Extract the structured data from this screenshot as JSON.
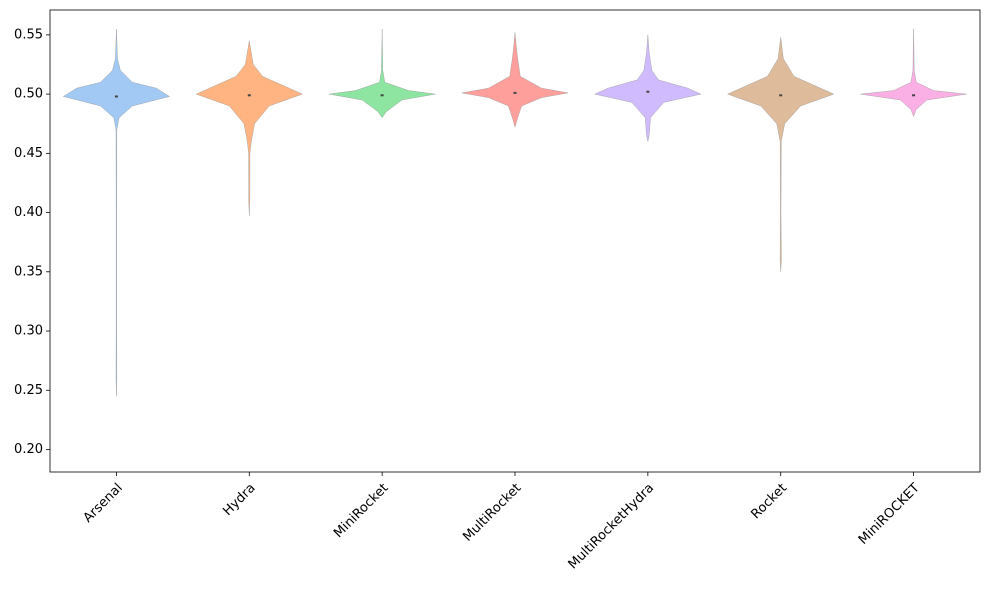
{
  "chart_data": {
    "type": "violin",
    "categories": [
      "Arsenal",
      "Hydra",
      "MiniRocket",
      "MultiRocket",
      "MultiRocketHydra",
      "Rocket",
      "MiniROCKET"
    ],
    "ylim": [
      0.181,
      0.571
    ],
    "yticks": [
      {
        "value": 0.2,
        "label": "0.20"
      },
      {
        "value": 0.25,
        "label": "0.25"
      },
      {
        "value": 0.3,
        "label": "0.30"
      },
      {
        "value": 0.35,
        "label": "0.35"
      },
      {
        "value": 0.4,
        "label": "0.40"
      },
      {
        "value": 0.45,
        "label": "0.45"
      },
      {
        "value": 0.5,
        "label": "0.50"
      },
      {
        "value": 0.55,
        "label": "0.55"
      }
    ],
    "violins": [
      {
        "color": "#a1c9f4",
        "median": 0.498,
        "y": [
          0.245,
          0.26,
          0.3,
          0.4,
          0.47,
          0.48,
          0.49,
          0.498,
          0.505,
          0.51,
          0.52,
          0.53,
          0.555
        ],
        "width": [
          0,
          0.003,
          0.002,
          0.002,
          0.003,
          0.02,
          0.12,
          0.4,
          0.3,
          0.12,
          0.03,
          0.008,
          0
        ]
      },
      {
        "color": "#ffb482",
        "median": 0.499,
        "y": [
          0.397,
          0.41,
          0.45,
          0.46,
          0.475,
          0.49,
          0.5,
          0.505,
          0.515,
          0.525,
          0.545
        ],
        "width": [
          0,
          0.004,
          0.005,
          0.015,
          0.04,
          0.15,
          0.4,
          0.3,
          0.1,
          0.03,
          0
        ]
      },
      {
        "color": "#8de5a1",
        "median": 0.499,
        "y": [
          0.48,
          0.485,
          0.495,
          0.5,
          0.503,
          0.51,
          0.52,
          0.555
        ],
        "width": [
          0,
          0.03,
          0.15,
          0.4,
          0.2,
          0.02,
          0.005,
          0
        ]
      },
      {
        "color": "#ff9f9b",
        "median": 0.501,
        "y": [
          0.472,
          0.48,
          0.49,
          0.497,
          0.501,
          0.505,
          0.515,
          0.53,
          0.54,
          0.552
        ],
        "width": [
          0,
          0.02,
          0.05,
          0.2,
          0.4,
          0.2,
          0.04,
          0.02,
          0.01,
          0
        ]
      },
      {
        "color": "#d0bbff",
        "median": 0.502,
        "y": [
          0.46,
          0.465,
          0.48,
          0.493,
          0.5,
          0.505,
          0.512,
          0.52,
          0.535,
          0.55
        ],
        "width": [
          0,
          0.01,
          0.02,
          0.12,
          0.4,
          0.3,
          0.08,
          0.03,
          0.01,
          0
        ]
      },
      {
        "color": "#debb9b",
        "median": 0.499,
        "y": [
          0.35,
          0.36,
          0.4,
          0.46,
          0.475,
          0.49,
          0.5,
          0.505,
          0.515,
          0.53,
          0.548
        ],
        "width": [
          0,
          0.005,
          0.002,
          0.004,
          0.03,
          0.15,
          0.4,
          0.3,
          0.1,
          0.02,
          0
        ]
      },
      {
        "color": "#fab0e4",
        "median": 0.499,
        "y": [
          0.481,
          0.487,
          0.495,
          0.5,
          0.503,
          0.51,
          0.52,
          0.555
        ],
        "width": [
          0,
          0.02,
          0.1,
          0.4,
          0.15,
          0.02,
          0.005,
          0
        ]
      }
    ]
  }
}
